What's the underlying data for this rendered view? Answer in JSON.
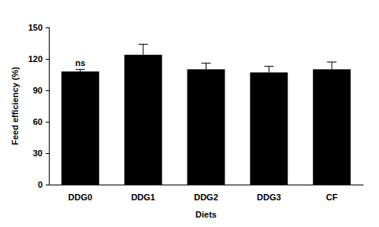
{
  "chart_data": {
    "type": "bar",
    "x_label": "Diets",
    "y_label": "Feed efficiency (%)",
    "categories": [
      "DDG0",
      "DDG1",
      "DDG2",
      "DDG3",
      "CF"
    ],
    "values": [
      108,
      124,
      110,
      107,
      110
    ],
    "errors": [
      2,
      10,
      6,
      6,
      7
    ],
    "color": "#000000",
    "ylim": [
      0,
      150
    ],
    "yticks": [
      0,
      30,
      60,
      90,
      120,
      150
    ],
    "grid": false,
    "annotations": [
      {
        "text": "ns",
        "category": "DDG0"
      }
    ]
  }
}
